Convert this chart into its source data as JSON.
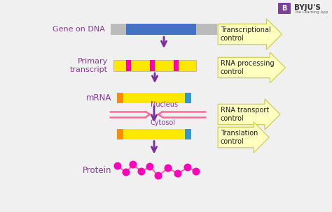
{
  "bg_color": "#f0f0f0",
  "purple": "#8B3A9E",
  "yellow_label": "#FFFFC0",
  "arrow_color": "#7B2D9E",
  "pink": "#FF6699",
  "magenta": "#FF00BB",
  "blue_dna": "#4472C4",
  "gray_dna": "#BBBBBB",
  "yellow_bar": "#FFE800",
  "orange_cap": "#FF8C00",
  "teal_cap": "#3399CC",
  "labels": {
    "gene_on_dna": "Gene on DNA",
    "primary_transcript": "Primary\ntranscript",
    "mrna": "mRNA",
    "nucleus": "Nucleus",
    "cytosol": "Cytosol",
    "protein": "Protein"
  },
  "controls": {
    "transcriptional": "Transcriptional\ncontrol",
    "rna_processing": "RNA processing\ncontrol",
    "rna_transport": "RNA transport\ncontrol",
    "translation": "Translation\ncontrol"
  }
}
